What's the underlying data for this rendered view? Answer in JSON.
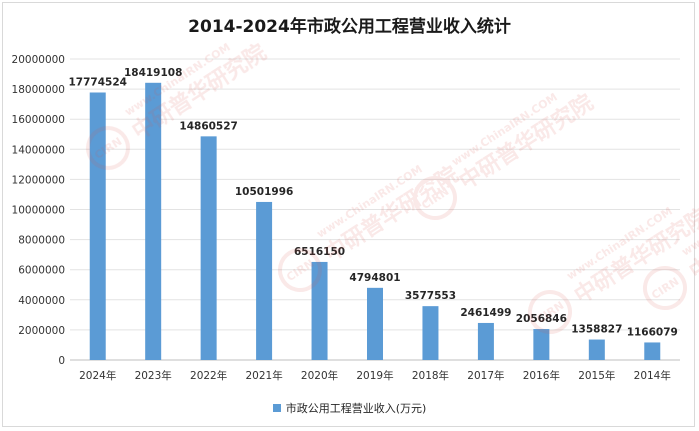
{
  "chart_data": {
    "type": "bar",
    "title": "2014-2024年市政公用工程营业收入统计",
    "categories": [
      "2024年",
      "2023年",
      "2022年",
      "2021年",
      "2020年",
      "2019年",
      "2018年",
      "2017年",
      "2016年",
      "2015年",
      "2014年"
    ],
    "series": [
      {
        "name": "市政公用工程营业收入(万元)",
        "values": [
          17774524,
          18419108,
          14860527,
          10501996,
          6516150,
          4794801,
          3577553,
          2461499,
          2056846,
          1358827,
          1166079
        ]
      }
    ],
    "data_labels": [
      "17774524",
      "18419108",
      "14860527",
      "10501996",
      "6516150",
      "4794801",
      "3577553",
      "2461499",
      "2056846",
      "1358827",
      "1166079"
    ],
    "yticks": [
      0,
      2000000,
      4000000,
      6000000,
      8000000,
      10000000,
      12000000,
      14000000,
      16000000,
      18000000,
      20000000
    ],
    "ylim": [
      0,
      20000000
    ],
    "grid": true,
    "legend_position": "bottom",
    "bar_color": "#5b9bd5"
  },
  "watermark": {
    "logo_text": "CIRN",
    "brand_text": "中研普华研究院",
    "site_text": "www.ChinaIRN.COM"
  }
}
